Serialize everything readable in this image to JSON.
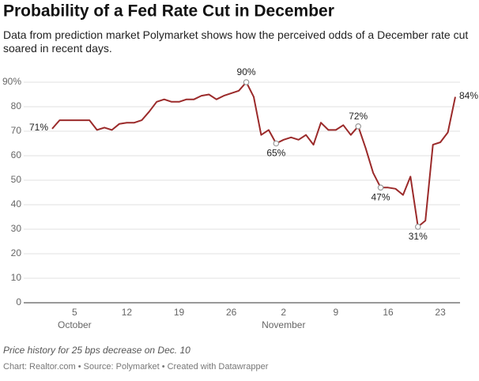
{
  "chart_data": {
    "type": "line",
    "title": "Probability of a Fed Rate Cut in December",
    "subtitle": "Data from prediction market Polymarket shows how the perceived odds of a December rate cut soared in recent days.",
    "note": "Price history for 25 bps decrease on Dec. 10",
    "source": "Chart: Realtor.com • Source: Polymarket • Created with Datawrapper",
    "categories": [
      null,
      null,
      null,
      "5",
      null,
      null,
      null,
      null,
      null,
      null,
      "12",
      null,
      null,
      null,
      null,
      null,
      null,
      "19",
      null,
      null,
      null,
      null,
      null,
      null,
      "26",
      null,
      null,
      null,
      null,
      null,
      null,
      "2",
      null,
      null,
      null,
      null,
      null,
      null,
      "9",
      null,
      null,
      null,
      null,
      null,
      null,
      "16",
      null,
      null,
      null,
      null,
      null,
      null,
      "23",
      null,
      null
    ],
    "x_group_labels": [
      {
        "label": "October",
        "category": 3
      },
      {
        "label": "November",
        "category": 31
      }
    ],
    "series": [
      {
        "name": "Probability",
        "color": "#9b2a2a",
        "values": [
          71,
          74.5,
          74.5,
          74.5,
          74.5,
          74.5,
          70.5,
          71.5,
          70.5,
          73,
          73.5,
          73.5,
          74.5,
          78,
          82,
          83,
          82,
          82,
          83,
          83,
          84.5,
          85,
          83,
          84.5,
          85.5,
          86.5,
          90,
          84,
          68.5,
          70.5,
          65,
          66.5,
          67.5,
          66.5,
          68.5,
          64.5,
          73.5,
          70.5,
          70.5,
          72.5,
          68.5,
          72,
          63,
          53,
          47,
          47,
          46.5,
          44,
          51.5,
          31,
          33.5,
          64.5,
          65.5,
          69.5,
          84
        ],
        "value_labels": [
          "71%",
          null,
          null,
          null,
          null,
          null,
          null,
          null,
          null,
          null,
          null,
          null,
          null,
          null,
          null,
          null,
          null,
          null,
          null,
          null,
          null,
          null,
          null,
          null,
          null,
          null,
          "90%",
          null,
          null,
          null,
          "65%",
          null,
          null,
          null,
          null,
          null,
          null,
          null,
          null,
          null,
          null,
          "72%",
          null,
          null,
          "47%",
          null,
          null,
          null,
          null,
          "31%",
          null,
          null,
          null,
          null,
          "84%"
        ]
      }
    ],
    "ylim": [
      0,
      90
    ],
    "yticks": [
      0,
      10,
      20,
      30,
      40,
      50,
      60,
      70,
      80,
      {
        "value": 90,
        "label": "90%"
      }
    ],
    "grid": true
  }
}
